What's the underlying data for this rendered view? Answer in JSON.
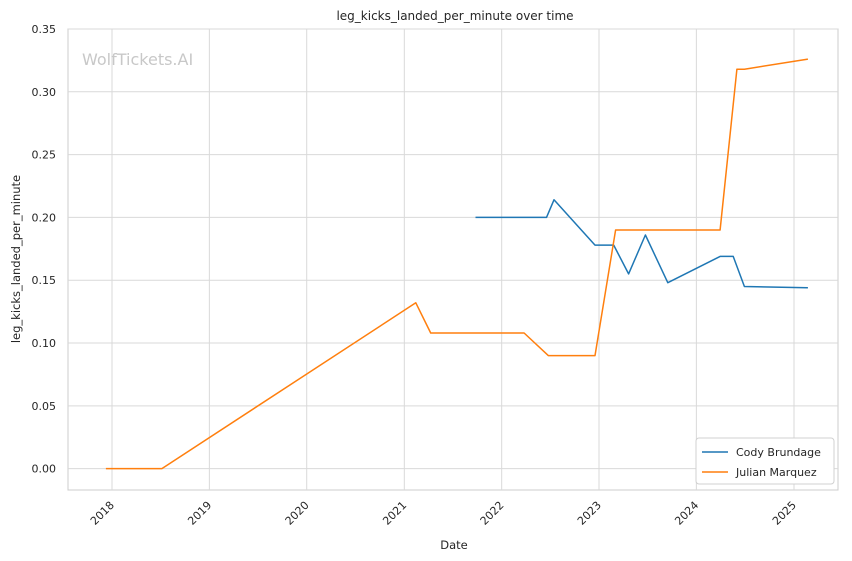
{
  "chart_data": {
    "type": "line",
    "title": "leg_kicks_landed_per_minute over time",
    "xlabel": "Date",
    "ylabel": "leg_kicks_landed_per_minute",
    "watermark": "WolfTickets.AI",
    "x_ticks": [
      "2018",
      "2019",
      "2020",
      "2021",
      "2022",
      "2023",
      "2024",
      "2025"
    ],
    "y_ticks": [
      "0.00",
      "0.05",
      "0.10",
      "0.15",
      "0.20",
      "0.25",
      "0.30",
      "0.35"
    ],
    "xlim": [
      "2017-07-20",
      "2025-06-15"
    ],
    "ylim": [
      -0.017,
      0.35
    ],
    "grid": true,
    "legend_position": "bottom-right",
    "series": [
      {
        "name": "Cody Brundage",
        "color": "#1f77b4",
        "points": [
          [
            "2021-09-25",
            0.2
          ],
          [
            "2022-06-18",
            0.2
          ],
          [
            "2022-07-16",
            0.214
          ],
          [
            "2022-12-17",
            0.178
          ],
          [
            "2023-02-25",
            0.178
          ],
          [
            "2023-04-22",
            0.155
          ],
          [
            "2023-06-24",
            0.186
          ],
          [
            "2023-09-16",
            0.148
          ],
          [
            "2024-03-30",
            0.169
          ],
          [
            "2024-05-18",
            0.169
          ],
          [
            "2024-06-29",
            0.145
          ],
          [
            "2025-02-22",
            0.144
          ]
        ]
      },
      {
        "name": "Julian Marquez",
        "color": "#ff7f0e",
        "points": [
          [
            "2017-12-09",
            0.0
          ],
          [
            "2018-07-07",
            0.0
          ],
          [
            "2021-02-13",
            0.132
          ],
          [
            "2021-04-10",
            0.108
          ],
          [
            "2022-03-26",
            0.108
          ],
          [
            "2022-06-25",
            0.09
          ],
          [
            "2022-12-17",
            0.09
          ],
          [
            "2023-03-04",
            0.19
          ],
          [
            "2024-03-30",
            0.19
          ],
          [
            "2024-06-01",
            0.318
          ],
          [
            "2024-06-29",
            0.318
          ],
          [
            "2025-02-22",
            0.326
          ]
        ]
      }
    ]
  }
}
